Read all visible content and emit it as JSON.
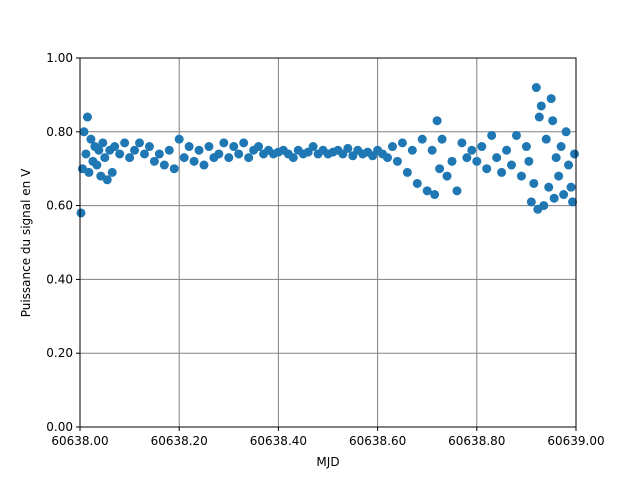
{
  "chart_data": {
    "type": "scatter",
    "x_label": "MJD",
    "y_label": "Puissance du signal en V",
    "xlim": [
      60638,
      60639
    ],
    "ylim": [
      0,
      1
    ],
    "xticks": [
      {
        "value": 60638,
        "label": "60638.00"
      },
      {
        "value": 60638.2,
        "label": "60638.20"
      },
      {
        "value": 60638.4,
        "label": "60638.40"
      },
      {
        "value": 60638.6,
        "label": "60638.60"
      },
      {
        "value": 60638.8,
        "label": "60638.80"
      },
      {
        "value": 60639,
        "label": "60639.00"
      }
    ],
    "yticks": [
      {
        "value": 0,
        "label": "0.00"
      },
      {
        "value": 0.2,
        "label": "0.20"
      },
      {
        "value": 0.4,
        "label": "0.40"
      },
      {
        "value": 0.6,
        "label": "0.60"
      },
      {
        "value": 0.8,
        "label": "0.80"
      },
      {
        "value": 1,
        "label": "1.00"
      }
    ],
    "grid": true,
    "color": "#1f77b4",
    "x": [
      60638.002,
      60638.005,
      60638.008,
      60638.012,
      60638.015,
      60638.018,
      60638.022,
      60638.026,
      60638.03,
      60638.034,
      60638.038,
      60638.042,
      60638.046,
      60638.05,
      60638.055,
      60638.06,
      60638.065,
      60638.07,
      60638.08,
      60638.09,
      60638.1,
      60638.11,
      60638.12,
      60638.13,
      60638.14,
      60638.15,
      60638.16,
      60638.17,
      60638.18,
      60638.19,
      60638.2,
      60638.21,
      60638.22,
      60638.23,
      60638.24,
      60638.25,
      60638.26,
      60638.27,
      60638.28,
      60638.29,
      60638.3,
      60638.31,
      60638.32,
      60638.33,
      60638.34,
      60638.35,
      60638.36,
      60638.37,
      60638.38,
      60638.39,
      60638.4,
      60638.41,
      60638.42,
      60638.43,
      60638.44,
      60638.45,
      60638.46,
      60638.47,
      60638.48,
      60638.49,
      60638.5,
      60638.51,
      60638.52,
      60638.53,
      60638.54,
      60638.55,
      60638.56,
      60638.57,
      60638.58,
      60638.59,
      60638.6,
      60638.61,
      60638.62,
      60638.63,
      60638.64,
      60638.65,
      60638.66,
      60638.67,
      60638.68,
      60638.69,
      60638.7,
      60638.71,
      60638.715,
      60638.72,
      60638.725,
      60638.73,
      60638.74,
      60638.75,
      60638.76,
      60638.77,
      60638.78,
      60638.79,
      60638.8,
      60638.81,
      60638.82,
      60638.83,
      60638.84,
      60638.85,
      60638.86,
      60638.87,
      60638.88,
      60638.89,
      60638.9,
      60638.905,
      60638.91,
      60638.915,
      60638.92,
      60638.923,
      60638.926,
      60638.93,
      60638.935,
      60638.94,
      60638.945,
      60638.95,
      60638.953,
      60638.956,
      60638.96,
      60638.965,
      60638.97,
      60638.975,
      60638.98,
      60638.985,
      60638.99,
      60638.993,
      60638.997
    ],
    "values": [
      0.58,
      0.7,
      0.8,
      0.74,
      0.84,
      0.69,
      0.78,
      0.72,
      0.76,
      0.71,
      0.75,
      0.68,
      0.77,
      0.73,
      0.67,
      0.75,
      0.69,
      0.76,
      0.74,
      0.77,
      0.73,
      0.75,
      0.77,
      0.74,
      0.76,
      0.72,
      0.74,
      0.71,
      0.75,
      0.7,
      0.78,
      0.73,
      0.76,
      0.72,
      0.75,
      0.71,
      0.76,
      0.73,
      0.74,
      0.77,
      0.73,
      0.76,
      0.74,
      0.77,
      0.73,
      0.75,
      0.76,
      0.74,
      0.75,
      0.74,
      0.745,
      0.75,
      0.74,
      0.73,
      0.75,
      0.74,
      0.745,
      0.76,
      0.74,
      0.75,
      0.74,
      0.745,
      0.75,
      0.74,
      0.755,
      0.735,
      0.75,
      0.74,
      0.745,
      0.735,
      0.75,
      0.74,
      0.73,
      0.76,
      0.72,
      0.77,
      0.69,
      0.75,
      0.66,
      0.78,
      0.64,
      0.75,
      0.63,
      0.83,
      0.7,
      0.78,
      0.68,
      0.72,
      0.64,
      0.77,
      0.73,
      0.75,
      0.72,
      0.76,
      0.7,
      0.79,
      0.73,
      0.69,
      0.75,
      0.71,
      0.79,
      0.68,
      0.76,
      0.72,
      0.61,
      0.66,
      0.92,
      0.59,
      0.84,
      0.87,
      0.6,
      0.78,
      0.65,
      0.89,
      0.83,
      0.62,
      0.73,
      0.68,
      0.76,
      0.63,
      0.8,
      0.71,
      0.65,
      0.61,
      0.74
    ]
  }
}
